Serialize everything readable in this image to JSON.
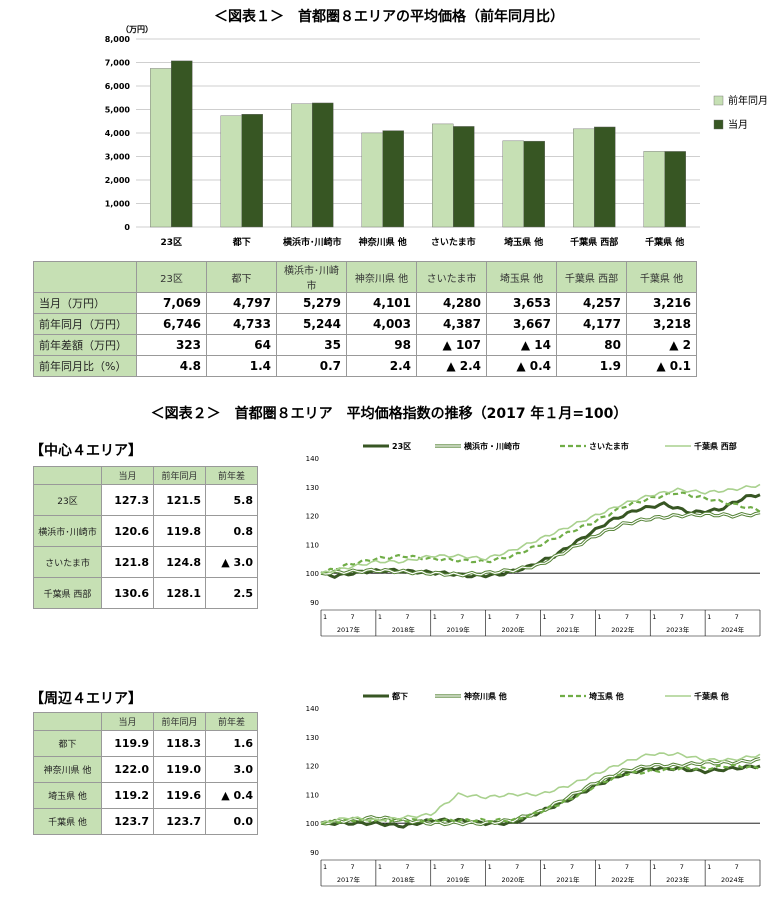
{
  "fig1": {
    "title": "＜図表１＞　首都圏８エリアの平均価格（前年同月比）",
    "unit": "（万円）",
    "legend": [
      "前年同月",
      "当月"
    ],
    "colors": {
      "prev": "#c6e0b4",
      "curr": "#375623"
    }
  },
  "chart_data": [
    {
      "type": "bar",
      "title": "＜図表１＞　首都圏８エリアの平均価格（前年同月比）",
      "ylabel": "（万円）",
      "ylim": [
        0,
        8000
      ],
      "yticks": [
        "0",
        "1,000",
        "2,000",
        "3,000",
        "4,000",
        "5,000",
        "6,000",
        "7,000",
        "8,000"
      ],
      "categories": [
        "23区",
        "都下",
        "横浜市･川崎市",
        "神奈川県 他",
        "さいたま市",
        "埼玉県 他",
        "千葉県 西部",
        "千葉県 他"
      ],
      "series": [
        {
          "name": "前年同月",
          "values": [
            6746,
            4733,
            5244,
            4003,
            4387,
            3667,
            4177,
            3218
          ]
        },
        {
          "name": "当月",
          "values": [
            7069,
            4797,
            5279,
            4101,
            4280,
            3653,
            4257,
            3216
          ]
        }
      ],
      "legend": "right"
    },
    {
      "type": "line",
      "title": "＜図表２＞　首都圏８エリア　平均価格指数の推移（2017 年１月=100）",
      "ylim": [
        90,
        140
      ],
      "yticks": [
        "90",
        "100",
        "110",
        "120",
        "130",
        "140"
      ],
      "xticks_month": [
        "1",
        "7"
      ],
      "years": [
        "2017年",
        "2018年",
        "2019年",
        "2020年",
        "2021年",
        "2022年",
        "2023年",
        "2024年"
      ],
      "series": [
        {
          "name": "23区",
          "style": "thick-dark",
          "anchors": [
            [
              0,
              100
            ],
            [
              3,
              99
            ],
            [
              9,
              100.5
            ],
            [
              15,
              101
            ],
            [
              21,
              100.5
            ],
            [
              27,
              100
            ],
            [
              33,
              99
            ],
            [
              39,
              99.5
            ],
            [
              45,
              102
            ],
            [
              51,
              106
            ],
            [
              57,
              112
            ],
            [
              63,
              118
            ],
            [
              69,
              122
            ],
            [
              75,
              124
            ],
            [
              81,
              121
            ],
            [
              87,
              122
            ],
            [
              93,
              126.5
            ],
            [
              96,
              127.3
            ]
          ]
        },
        {
          "name": "横浜市・川崎市",
          "style": "double",
          "anchors": [
            [
              0,
              100
            ],
            [
              6,
              100.5
            ],
            [
              12,
              101
            ],
            [
              18,
              100.5
            ],
            [
              24,
              100
            ],
            [
              30,
              99.5
            ],
            [
              36,
              100
            ],
            [
              42,
              101
            ],
            [
              48,
              103
            ],
            [
              54,
              108
            ],
            [
              60,
              113
            ],
            [
              66,
              117
            ],
            [
              72,
              119
            ],
            [
              78,
              120
            ],
            [
              84,
              120.5
            ],
            [
              90,
              120
            ],
            [
              96,
              120.6
            ]
          ]
        },
        {
          "name": "さいたま市",
          "style": "dashed",
          "anchors": [
            [
              0,
              100
            ],
            [
              6,
              103
            ],
            [
              12,
              105
            ],
            [
              18,
              106
            ],
            [
              24,
              105
            ],
            [
              30,
              104.5
            ],
            [
              36,
              104
            ],
            [
              42,
              106
            ],
            [
              48,
              110
            ],
            [
              54,
              114
            ],
            [
              60,
              118
            ],
            [
              66,
              123
            ],
            [
              72,
              126
            ],
            [
              78,
              128
            ],
            [
              84,
              126
            ],
            [
              90,
              124
            ],
            [
              96,
              121.8
            ]
          ]
        },
        {
          "name": "千葉県 西部",
          "style": "light",
          "anchors": [
            [
              0,
              100
            ],
            [
              6,
              102
            ],
            [
              12,
              104
            ],
            [
              18,
              104
            ],
            [
              24,
              106
            ],
            [
              30,
              106
            ],
            [
              36,
              105
            ],
            [
              42,
              108
            ],
            [
              48,
              112
            ],
            [
              54,
              116
            ],
            [
              60,
              120
            ],
            [
              66,
              124
            ],
            [
              72,
              127
            ],
            [
              78,
              129
            ],
            [
              84,
              128
            ],
            [
              90,
              129
            ],
            [
              96,
              130.6
            ]
          ]
        }
      ]
    },
    {
      "type": "line",
      "ylim": [
        90,
        140
      ],
      "yticks": [
        "90",
        "100",
        "110",
        "120",
        "130",
        "140"
      ],
      "xticks_month": [
        "1",
        "7"
      ],
      "years": [
        "2017年",
        "2018年",
        "2019年",
        "2020年",
        "2021年",
        "2022年",
        "2023年",
        "2024年"
      ],
      "series": [
        {
          "name": "都下",
          "style": "thick-dark",
          "anchors": [
            [
              0,
              100
            ],
            [
              6,
              100
            ],
            [
              12,
              100
            ],
            [
              18,
              99
            ],
            [
              24,
              101
            ],
            [
              30,
              101
            ],
            [
              36,
              100
            ],
            [
              42,
              100
            ],
            [
              48,
              104
            ],
            [
              54,
              108
            ],
            [
              60,
              113
            ],
            [
              66,
              117
            ],
            [
              72,
              119
            ],
            [
              78,
              119
            ],
            [
              84,
              118
            ],
            [
              90,
              119
            ],
            [
              96,
              119.9
            ]
          ]
        },
        {
          "name": "神奈川県 他",
          "style": "double",
          "anchors": [
            [
              0,
              100
            ],
            [
              6,
              101
            ],
            [
              12,
              102
            ],
            [
              18,
              101
            ],
            [
              24,
              100
            ],
            [
              30,
              100
            ],
            [
              36,
              100
            ],
            [
              42,
              101
            ],
            [
              48,
              104
            ],
            [
              54,
              109
            ],
            [
              60,
              114
            ],
            [
              66,
              118
            ],
            [
              72,
              120
            ],
            [
              78,
              120
            ],
            [
              84,
              121
            ],
            [
              90,
              121
            ],
            [
              96,
              122.0
            ]
          ]
        },
        {
          "name": "埼玉県 他",
          "style": "dashed",
          "anchors": [
            [
              0,
              100
            ],
            [
              6,
              101
            ],
            [
              12,
              101
            ],
            [
              18,
              101
            ],
            [
              24,
              101
            ],
            [
              30,
              101
            ],
            [
              36,
              101
            ],
            [
              42,
              101
            ],
            [
              48,
              104
            ],
            [
              54,
              108
            ],
            [
              60,
              113
            ],
            [
              66,
              117
            ],
            [
              72,
              118
            ],
            [
              78,
              119
            ],
            [
              84,
              119
            ],
            [
              90,
              120
            ],
            [
              96,
              119.2
            ]
          ]
        },
        {
          "name": "千葉県 他",
          "style": "light",
          "anchors": [
            [
              0,
              100
            ],
            [
              6,
              102
            ],
            [
              12,
              101
            ],
            [
              18,
              102
            ],
            [
              24,
              103
            ],
            [
              30,
              110
            ],
            [
              36,
              109
            ],
            [
              42,
              110
            ],
            [
              48,
              110
            ],
            [
              54,
              113
            ],
            [
              60,
              117
            ],
            [
              66,
              121
            ],
            [
              72,
              124
            ],
            [
              78,
              124
            ],
            [
              84,
              122
            ],
            [
              90,
              122
            ],
            [
              96,
              123.7
            ]
          ]
        }
      ]
    }
  ],
  "table1": {
    "headers": [
      "23区",
      "都下",
      "横浜市･川崎市",
      "神奈川県 他",
      "さいたま市",
      "埼玉県 他",
      "千葉県 西部",
      "千葉県 他"
    ],
    "rows": [
      {
        "label": "当月（万円）",
        "values": [
          "7,069",
          "4,797",
          "5,279",
          "4,101",
          "4,280",
          "3,653",
          "4,257",
          "3,216"
        ]
      },
      {
        "label": "前年同月（万円）",
        "values": [
          "6,746",
          "4,733",
          "5,244",
          "4,003",
          "4,387",
          "3,667",
          "4,177",
          "3,218"
        ]
      },
      {
        "label": "前年差額（万円）",
        "values": [
          "323",
          "64",
          "35",
          "98",
          "▲ 107",
          "▲ 14",
          "80",
          "▲ 2"
        ]
      },
      {
        "label": "前年同月比（%）",
        "values": [
          "4.8",
          "1.4",
          "0.7",
          "2.4",
          "▲ 2.4",
          "▲ 0.4",
          "1.9",
          "▲ 0.1"
        ]
      }
    ]
  },
  "fig2": {
    "title": "＜図表２＞　首都圏８エリア　平均価格指数の推移（2017 年１月=100）"
  },
  "center": {
    "title": "【中心４エリア】",
    "headers": [
      "当月",
      "前年同月",
      "前年差"
    ],
    "rows": [
      {
        "label": "23区",
        "values": [
          "127.3",
          "121.5",
          "5.8"
        ]
      },
      {
        "label": "横浜市･川崎市",
        "values": [
          "120.6",
          "119.8",
          "0.8"
        ]
      },
      {
        "label": "さいたま市",
        "values": [
          "121.8",
          "124.8",
          "▲ 3.0"
        ]
      },
      {
        "label": "千葉県 西部",
        "values": [
          "130.6",
          "128.1",
          "2.5"
        ]
      }
    ]
  },
  "periph": {
    "title": "【周辺４エリア】",
    "headers": [
      "当月",
      "前年同月",
      "前年差"
    ],
    "rows": [
      {
        "label": "都下",
        "values": [
          "119.9",
          "118.3",
          "1.6"
        ]
      },
      {
        "label": "神奈川県 他",
        "values": [
          "122.0",
          "119.0",
          "3.0"
        ]
      },
      {
        "label": "埼玉県 他",
        "values": [
          "119.2",
          "119.6",
          "▲ 0.4"
        ]
      },
      {
        "label": "千葉県 他",
        "values": [
          "123.7",
          "123.7",
          "0.0"
        ]
      }
    ]
  }
}
